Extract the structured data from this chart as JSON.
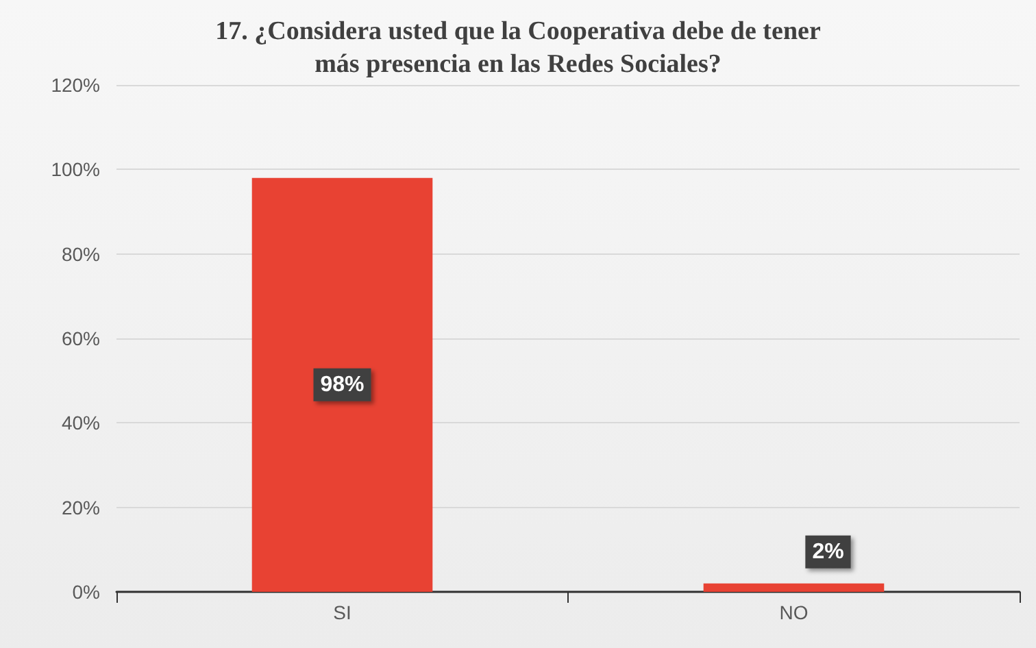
{
  "chart_data": {
    "type": "bar",
    "title": "17. ¿Considera usted que la Cooperativa debe de tener\nmás presencia en las Redes Sociales?",
    "categories": [
      "SI",
      "NO"
    ],
    "values": [
      98,
      2
    ],
    "color": "#e84233",
    "value_labels": [
      "98%",
      "2%"
    ],
    "ylim": [
      0,
      120
    ],
    "yticks": [
      {
        "value": 0,
        "label": "0%"
      },
      {
        "value": 20,
        "label": "20%"
      },
      {
        "value": 40,
        "label": "40%"
      },
      {
        "value": 60,
        "label": "60%"
      },
      {
        "value": 80,
        "label": "80%"
      },
      {
        "value": 100,
        "label": "100%"
      },
      {
        "value": 120,
        "label": "120%"
      }
    ],
    "grid": "y"
  }
}
